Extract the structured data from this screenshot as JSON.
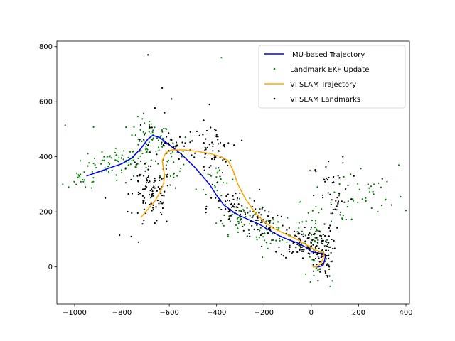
{
  "chart_data": {
    "type": "scatter",
    "title": "",
    "xlabel": "",
    "ylabel": "",
    "xlim": [
      -1075,
      415
    ],
    "ylim": [
      -135,
      820
    ],
    "xticks": [
      -1000,
      -800,
      -600,
      -400,
      -200,
      0,
      200,
      400
    ],
    "yticks": [
      0,
      200,
      400,
      600,
      800
    ],
    "grid": false,
    "legend_position": "top-right",
    "series": [
      {
        "name": "IMU-based Trajectory",
        "kind": "line",
        "color": "#0000ff",
        "points": [
          [
            -950,
            330
          ],
          [
            -900,
            345
          ],
          [
            -850,
            360
          ],
          [
            -800,
            375
          ],
          [
            -760,
            395
          ],
          [
            -720,
            430
          ],
          [
            -690,
            465
          ],
          [
            -670,
            478
          ],
          [
            -640,
            470
          ],
          [
            -610,
            450
          ],
          [
            -580,
            430
          ],
          [
            -550,
            410
          ],
          [
            -520,
            385
          ],
          [
            -490,
            360
          ],
          [
            -460,
            330
          ],
          [
            -430,
            300
          ],
          [
            -400,
            260
          ],
          [
            -370,
            225
          ],
          [
            -330,
            200
          ],
          [
            -300,
            185
          ],
          [
            -260,
            170
          ],
          [
            -220,
            155
          ],
          [
            -180,
            135
          ],
          [
            -140,
            115
          ],
          [
            -100,
            100
          ],
          [
            -60,
            88
          ],
          [
            -20,
            70
          ],
          [
            0,
            55
          ],
          [
            30,
            50
          ],
          [
            55,
            48
          ],
          [
            60,
            40
          ],
          [
            55,
            20
          ],
          [
            50,
            5
          ],
          [
            30,
            0
          ],
          [
            10,
            0
          ]
        ]
      },
      {
        "name": "Landmark EKF Update",
        "kind": "scatter",
        "color": "#008000",
        "count": 420,
        "clusters": [
          {
            "x": -800,
            "y": 380,
            "sx": 70,
            "sy": 25,
            "n": 70
          },
          {
            "x": -680,
            "y": 470,
            "sx": 45,
            "sy": 35,
            "n": 55
          },
          {
            "x": -600,
            "y": 390,
            "sx": 45,
            "sy": 55,
            "n": 30
          },
          {
            "x": -400,
            "y": 320,
            "sx": 40,
            "sy": 45,
            "n": 25
          },
          {
            "x": -300,
            "y": 180,
            "sx": 50,
            "sy": 30,
            "n": 45
          },
          {
            "x": -150,
            "y": 120,
            "sx": 55,
            "sy": 25,
            "n": 40
          },
          {
            "x": 10,
            "y": 90,
            "sx": 35,
            "sy": 55,
            "n": 50
          },
          {
            "x": 180,
            "y": 240,
            "sx": 110,
            "sy": 60,
            "n": 45
          },
          {
            "x": -960,
            "y": 320,
            "sx": 35,
            "sy": 20,
            "n": 20
          }
        ],
        "outliers": [
          [
            -1040,
            515
          ],
          [
            -1050,
            300
          ],
          [
            -1025,
            290
          ],
          [
            -920,
            508
          ],
          [
            -380,
            760
          ],
          [
            -5,
            350
          ],
          [
            80,
            -70
          ],
          [
            400,
            205
          ],
          [
            370,
            370
          ],
          [
            320,
            310
          ],
          [
            230,
            250
          ],
          [
            265,
            300
          ]
        ]
      },
      {
        "name": "VI SLAM Trajectory",
        "kind": "line",
        "color": "#ffa500",
        "points": [
          [
            -720,
            180
          ],
          [
            -690,
            210
          ],
          [
            -660,
            240
          ],
          [
            -640,
            270
          ],
          [
            -625,
            300
          ],
          [
            -620,
            330
          ],
          [
            -625,
            360
          ],
          [
            -630,
            385
          ],
          [
            -615,
            415
          ],
          [
            -590,
            425
          ],
          [
            -540,
            425
          ],
          [
            -480,
            420
          ],
          [
            -420,
            410
          ],
          [
            -380,
            400
          ],
          [
            -350,
            385
          ],
          [
            -330,
            350
          ],
          [
            -310,
            300
          ],
          [
            -280,
            250
          ],
          [
            -240,
            200
          ],
          [
            -200,
            165
          ],
          [
            -160,
            140
          ],
          [
            -110,
            120
          ],
          [
            -60,
            100
          ],
          [
            -20,
            80
          ],
          [
            20,
            60
          ],
          [
            55,
            50
          ],
          [
            50,
            30
          ],
          [
            40,
            10
          ],
          [
            20,
            0
          ],
          [
            5,
            0
          ]
        ]
      },
      {
        "name": "VI SLAM Landmarks",
        "kind": "scatter",
        "color": "#000000",
        "count": 560,
        "clusters": [
          {
            "x": -670,
            "y": 250,
            "sx": 40,
            "sy": 55,
            "n": 90
          },
          {
            "x": -690,
            "y": 410,
            "sx": 50,
            "sy": 70,
            "n": 40
          },
          {
            "x": -420,
            "y": 420,
            "sx": 40,
            "sy": 50,
            "n": 60
          },
          {
            "x": -330,
            "y": 210,
            "sx": 55,
            "sy": 35,
            "n": 55
          },
          {
            "x": -200,
            "y": 160,
            "sx": 50,
            "sy": 30,
            "n": 55
          },
          {
            "x": -50,
            "y": 90,
            "sx": 40,
            "sy": 30,
            "n": 70
          },
          {
            "x": 40,
            "y": 50,
            "sx": 25,
            "sy": 45,
            "n": 90
          },
          {
            "x": 100,
            "y": 250,
            "sx": 40,
            "sy": 70,
            "n": 45
          },
          {
            "x": -560,
            "y": 440,
            "sx": 50,
            "sy": 30,
            "n": 30
          }
        ],
        "outliers": [
          [
            -690,
            770
          ],
          [
            -630,
            650
          ],
          [
            -590,
            610
          ],
          [
            -430,
            590
          ],
          [
            -810,
            115
          ],
          [
            -730,
            90
          ],
          [
            -870,
            250
          ],
          [
            -620,
            560
          ],
          [
            300,
            320
          ],
          [
            340,
            225
          ],
          [
            240,
            300
          ],
          [
            180,
            330
          ],
          [
            -400,
            480
          ],
          [
            -350,
            450
          ]
        ]
      }
    ]
  }
}
